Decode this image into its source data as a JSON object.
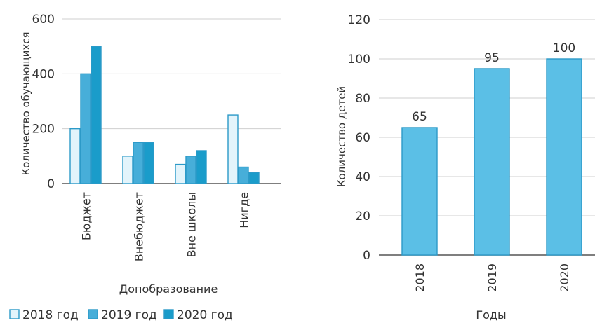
{
  "chart_data": [
    {
      "type": "bar",
      "categories": [
        "Бюджет",
        "Внебюджет",
        "Вне школы",
        "Нигде"
      ],
      "series": [
        {
          "name": "2018 год",
          "values": [
            200,
            100,
            70,
            250
          ]
        },
        {
          "name": "2019 год",
          "values": [
            400,
            150,
            100,
            60
          ]
        },
        {
          "name": "2020 год",
          "values": [
            500,
            150,
            120,
            40
          ]
        }
      ],
      "xlabel": "Допобразование",
      "ylabel": "Количество обучающихся",
      "ylim": [
        0,
        600
      ],
      "yticks": [
        0,
        200,
        400,
        600
      ],
      "grid": true,
      "legend": "bottom",
      "colors": [
        "#e3f4fb",
        "#47aed9",
        "#1a9cca"
      ],
      "edge_color": "#2c9ac8"
    },
    {
      "type": "bar",
      "categories": [
        "2018",
        "2019",
        "2020"
      ],
      "values": [
        65,
        95,
        100
      ],
      "data_labels": [
        "65",
        "95",
        "100"
      ],
      "xlabel": "Годы",
      "ylabel": "Количество детей",
      "ylim": [
        0,
        120
      ],
      "yticks": [
        0,
        20,
        40,
        60,
        80,
        100,
        120
      ],
      "grid": true,
      "colors": [
        "#5bbfe6"
      ],
      "edge_color": "#2c9ac8"
    }
  ]
}
